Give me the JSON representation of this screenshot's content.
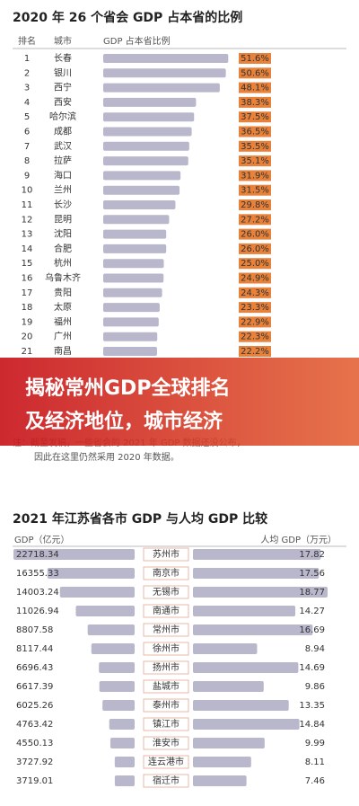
{
  "banner": {
    "lines": [
      "揭秘常州GDP全球排名",
      "及经济地位，城市经济"
    ]
  },
  "chart_data": [
    {
      "type": "bar",
      "title": "2020 年 26 个省会 GDP 占本省的比例",
      "column_labels": [
        "排名",
        "城市",
        "GDP 占本省比例"
      ],
      "ranks": [
        1,
        2,
        3,
        4,
        5,
        6,
        7,
        8,
        9,
        10,
        11,
        12,
        13,
        14,
        15,
        16,
        17,
        18,
        19,
        20,
        21
      ],
      "categories": [
        "长春",
        "银川",
        "西宁",
        "西安",
        "哈尔滨",
        "成都",
        "武汉",
        "拉萨",
        "海口",
        "兰州",
        "长沙",
        "昆明",
        "沈阳",
        "合肥",
        "杭州",
        "乌鲁木齐",
        "贵阳",
        "太原",
        "福州",
        "广州",
        "南昌"
      ],
      "values": [
        51.6,
        50.6,
        48.1,
        38.3,
        37.5,
        36.5,
        35.5,
        35.1,
        31.9,
        31.5,
        29.8,
        27.2,
        26.0,
        26.0,
        25.0,
        24.9,
        24.3,
        23.3,
        22.9,
        22.3,
        22.2
      ],
      "value_labels": [
        "51.6%",
        "50.6%",
        "48.1%",
        "38.3%",
        "37.5%",
        "36.5%",
        "35.5%",
        "35.1%",
        "31.9%",
        "31.5%",
        "29.8%",
        "27.2%",
        "26.0%",
        "26.0%",
        "25.0%",
        "24.9%",
        "24.3%",
        "23.3%",
        "22.9%",
        "22.3%",
        "22.2%"
      ],
      "color": "#b8b7cb",
      "note_lines": [
        "注：截至发稿，一些省会的 2021 年 GDP 数据还没公布，",
        "因此在这里仍然采用 2020 年数据。"
      ]
    },
    {
      "type": "butterfly",
      "title": "2021 年江苏省各市 GDP 与人均 GDP 比较",
      "categories": [
        "苏州市",
        "南京市",
        "无锡市",
        "南通市",
        "常州市",
        "徐州市",
        "扬州市",
        "盐城市",
        "泰州市",
        "镇江市",
        "淮安市",
        "连云港市",
        "宿迁市"
      ],
      "series": [
        {
          "name": "GDP（亿元）",
          "color": "#b8b7cb",
          "values": [
            22718.34,
            16355.33,
            14003.24,
            11026.94,
            8807.58,
            8117.44,
            6696.43,
            6617.39,
            6025.26,
            4763.42,
            4550.13,
            3727.92,
            3719.01
          ]
        },
        {
          "name": "人均 GDP（万元）",
          "color": "#b8b7cb",
          "values": [
            17.82,
            17.56,
            18.77,
            14.27,
            16.69,
            8.94,
            14.69,
            9.86,
            13.35,
            14.84,
            9.99,
            8.11,
            7.46
          ]
        }
      ]
    }
  ]
}
